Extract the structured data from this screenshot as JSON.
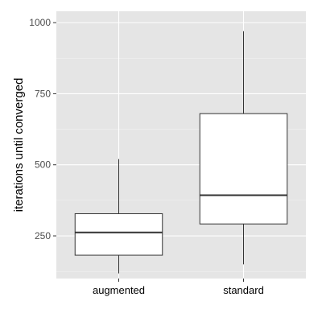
{
  "chart_data": {
    "type": "boxplot",
    "title": "",
    "xlabel": "",
    "ylabel": "iterations until converged",
    "categories": [
      "augmented",
      "standard"
    ],
    "series": [
      {
        "category": "augmented",
        "whisker_low": 118,
        "q1": 182,
        "median": 262,
        "q3": 328,
        "whisker_high": 520
      },
      {
        "category": "standard",
        "whisker_low": 150,
        "q1": 292,
        "median": 393,
        "q3": 680,
        "whisker_high": 970
      }
    ],
    "y_ticks": [
      250,
      500,
      750,
      1000
    ],
    "y_tick_labels": [
      "250",
      "500",
      "750",
      "1000"
    ],
    "ylim": [
      100,
      1040
    ],
    "grid": true,
    "colors": {
      "panel": "#e5e5e5",
      "grid_major": "#ffffff",
      "grid_minor": "#f2f2f2",
      "box_fill": "#ffffff",
      "box_stroke": "#333333",
      "tick_text": "#4d4d4d"
    }
  }
}
